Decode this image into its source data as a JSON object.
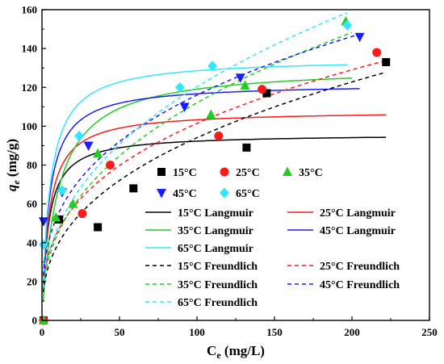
{
  "chart_data": {
    "type": "scatter",
    "xlabel": {
      "main": "C",
      "sub": "e",
      "unit": " (mg/L)"
    },
    "ylabel": {
      "main": "q",
      "sub": "e",
      "unit": " (mg/g)"
    },
    "xlim": [
      0,
      250
    ],
    "ylim": [
      0,
      160
    ],
    "xticks": [
      "0",
      "50",
      "100",
      "150",
      "200",
      "250"
    ],
    "yticks": [
      "0",
      "20",
      "40",
      "60",
      "80",
      "100",
      "120",
      "140",
      "160"
    ],
    "xtick_values": [
      0,
      50,
      100,
      150,
      200,
      250
    ],
    "ytick_values": [
      0,
      20,
      40,
      60,
      80,
      100,
      120,
      140,
      160
    ],
    "grid": false,
    "legend_position": "center-right",
    "series": [
      {
        "name": "15°C",
        "marker": "square",
        "color": "#000000",
        "x": [
          1,
          11,
          36,
          59,
          132,
          145,
          222
        ],
        "y": [
          0,
          52,
          48,
          68,
          89,
          117,
          133
        ]
      },
      {
        "name": "25°C",
        "marker": "circle",
        "color": "#ff1a1a",
        "x": [
          1,
          26,
          44,
          114,
          142,
          216
        ],
        "y": [
          0,
          55,
          80,
          95,
          119,
          138
        ]
      },
      {
        "name": "35°C",
        "marker": "triangle-up",
        "color": "#22cc22",
        "x": [
          1,
          9,
          20,
          36,
          109,
          131,
          196
        ],
        "y": [
          0,
          53,
          60,
          86,
          106,
          121,
          154
        ]
      },
      {
        "name": "45°C",
        "marker": "triangle-down",
        "color": "#1a1aff",
        "x": [
          1,
          13,
          30,
          92,
          128,
          205
        ],
        "y": [
          51,
          66,
          90,
          110,
          125,
          146
        ]
      },
      {
        "name": "65°C",
        "marker": "diamond",
        "color": "#33e6ff",
        "x": [
          1,
          13,
          24,
          89,
          110,
          197
        ],
        "y": [
          39,
          67,
          95,
          120,
          131,
          152
        ]
      }
    ],
    "fits": [
      {
        "name": "15°C Langmuir",
        "color": "#000000",
        "dash": false,
        "model": "langmuir",
        "qm": 96,
        "kl": 0.25,
        "xmax": 222
      },
      {
        "name": "25°C Langmuir",
        "color": "#ff1a1a",
        "dash": false,
        "model": "langmuir",
        "qm": 108,
        "kl": 0.22,
        "xmax": 222
      },
      {
        "name": "35°C Langmuir",
        "color": "#22cc22",
        "dash": false,
        "model": "langmuir",
        "qm": 131,
        "kl": 0.1,
        "xmax": 200
      },
      {
        "name": "45°C Langmuir",
        "color": "#1a1aff",
        "dash": false,
        "model": "langmuir",
        "qm": 122,
        "kl": 0.22,
        "xmax": 205
      },
      {
        "name": "65°C Langmuir",
        "color": "#33e6ff",
        "dash": false,
        "model": "langmuir",
        "qm": 135,
        "kl": 0.2,
        "xmax": 197
      },
      {
        "name": "15°C Freundlich",
        "color": "#000000",
        "dash": true,
        "model": "freundlich",
        "kf": 16,
        "n": 2.6,
        "xmax": 222
      },
      {
        "name": "25°C Freundlich",
        "color": "#ff1a1a",
        "dash": true,
        "model": "freundlich",
        "kf": 20.5,
        "n": 2.88,
        "xmax": 222
      },
      {
        "name": "35°C Freundlich",
        "color": "#22cc22",
        "dash": true,
        "model": "freundlich",
        "kf": 17.5,
        "n": 2.48,
        "xmax": 200
      },
      {
        "name": "45°C Freundlich",
        "color": "#1a1aff",
        "dash": true,
        "model": "freundlich",
        "kf": 25,
        "n": 3.0,
        "xmax": 205
      },
      {
        "name": "65°C Freundlich",
        "color": "#33e6ff",
        "dash": true,
        "model": "freundlich",
        "kf": 18.5,
        "n": 2.46,
        "xmax": 197
      }
    ]
  }
}
